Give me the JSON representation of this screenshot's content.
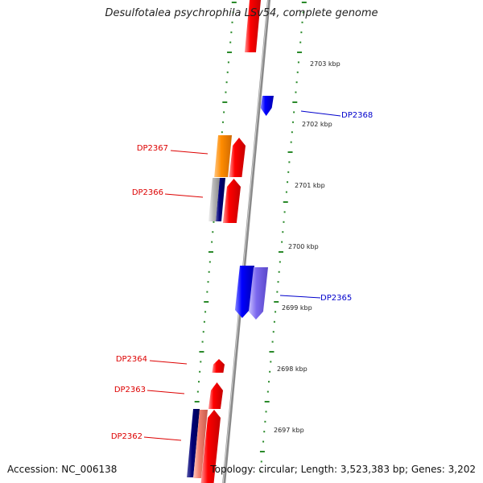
{
  "title": "Desulfotalea psychrophila LSv54, complete genome",
  "accession": "Accession: NC_006138",
  "topology": "Topology: circular; Length: 3,523,383 bp; Genes: 3,202",
  "colors": {
    "red": "#ff0000",
    "blue": "#0000ff",
    "orange": "#ff8c00",
    "navy": "#00007a",
    "lavender": "#7b68ee",
    "salmon": "#f08070",
    "gray": "#b8b8b8",
    "tick_green": "#2a8a2a",
    "backbone": "#8a8a8a",
    "label_red": "#dd0000",
    "label_blue": "#0000cc"
  },
  "scale_labels": [
    "2703 kbp",
    "2702 kbp",
    "2701 kbp",
    "2700 kbp",
    "2699 kbp",
    "2698 kbp",
    "2697 kbp"
  ],
  "gene_labels": [
    {
      "text": "DP2368",
      "color": "label_blue"
    },
    {
      "text": "DP2367",
      "color": "label_red"
    },
    {
      "text": "DP2366",
      "color": "label_red"
    },
    {
      "text": "DP2365",
      "color": "label_blue"
    },
    {
      "text": "DP2364",
      "color": "label_red"
    },
    {
      "text": "DP2363",
      "color": "label_red"
    },
    {
      "text": "DP2362",
      "color": "label_red"
    }
  ],
  "features": [
    {
      "name": "top-red-gene",
      "color": "red",
      "shape": "box"
    },
    {
      "name": "dp2368-gene",
      "color": "blue",
      "shape": "arrow-down"
    },
    {
      "name": "dp2367-orange-gene",
      "color": "orange",
      "shape": "box"
    },
    {
      "name": "dp2367-red-gene",
      "color": "red",
      "shape": "arrow-up"
    },
    {
      "name": "dp2366-gray-gene",
      "color": "gray",
      "shape": "box"
    },
    {
      "name": "dp2366-navy-gene",
      "color": "navy",
      "shape": "box"
    },
    {
      "name": "dp2366-red-gene",
      "color": "red",
      "shape": "arrow-up"
    },
    {
      "name": "dp2365-blue-gene",
      "color": "blue",
      "shape": "arrow-down"
    },
    {
      "name": "dp2365-lavender-gene",
      "color": "lavender",
      "shape": "arrow-down"
    },
    {
      "name": "dp2364-red-gene",
      "color": "red",
      "shape": "arrow-up"
    },
    {
      "name": "dp2363-red-gene",
      "color": "red",
      "shape": "arrow-up"
    },
    {
      "name": "dp2362-navy-gene",
      "color": "navy",
      "shape": "box"
    },
    {
      "name": "dp2362-salmon-gene",
      "color": "salmon",
      "shape": "box"
    },
    {
      "name": "dp2362-red-gene",
      "color": "red",
      "shape": "arrow-up"
    }
  ]
}
